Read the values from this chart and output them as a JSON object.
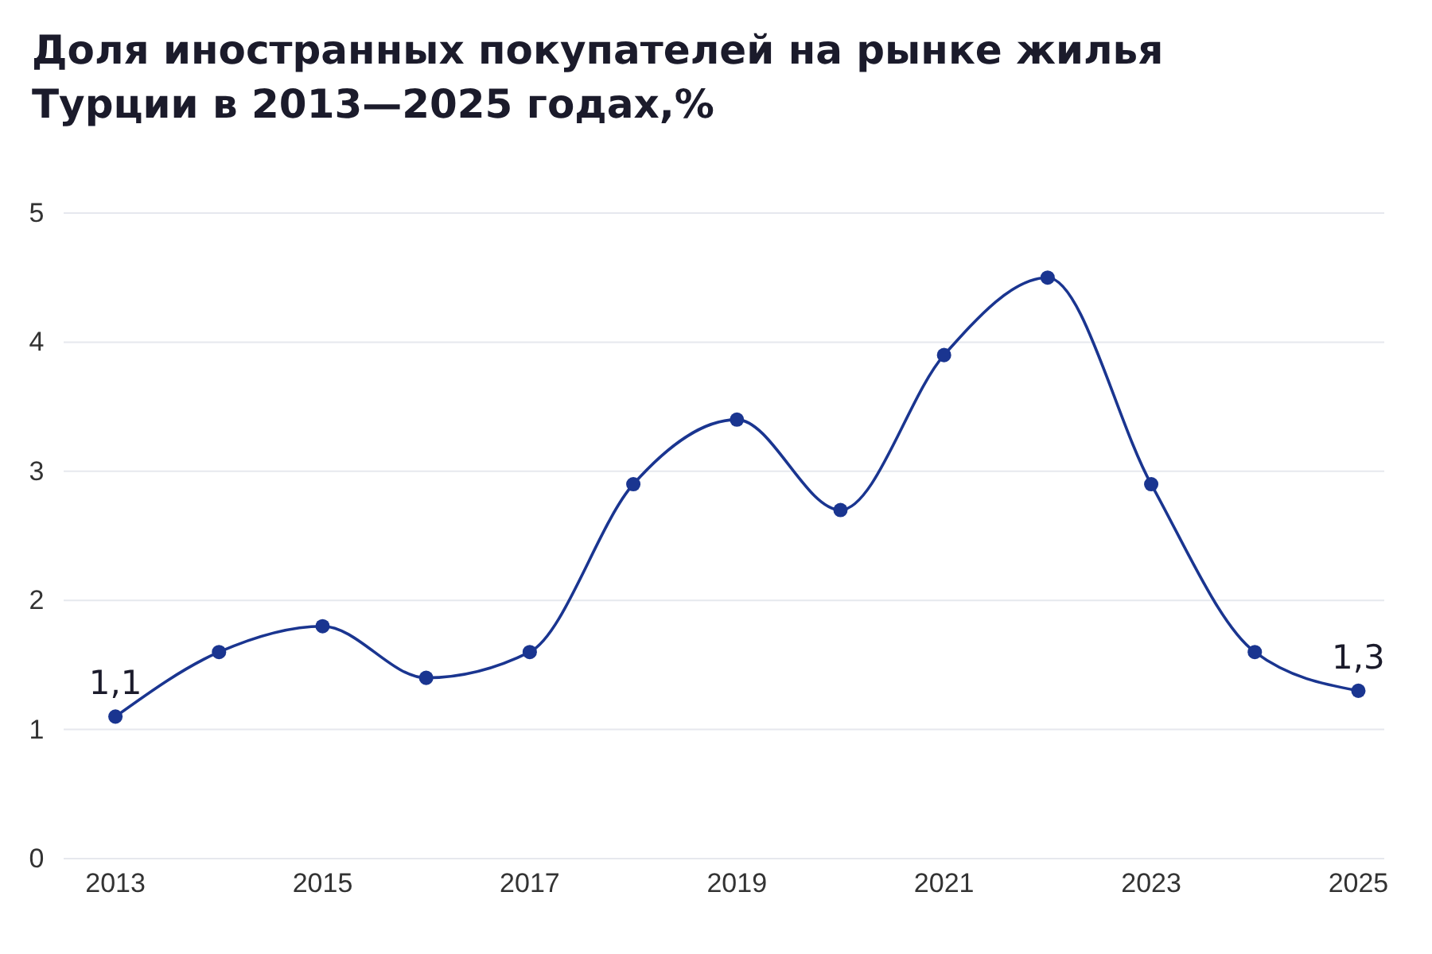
{
  "chart_data": {
    "type": "line",
    "title": "Доля иностранных покупателей на рынке жилья\nТурции в 2013—2025 годах,%",
    "x": [
      2013,
      2014,
      2015,
      2016,
      2017,
      2018,
      2019,
      2020,
      2021,
      2022,
      2023,
      2024,
      2025
    ],
    "series": [
      {
        "color": "#1a3590",
        "values": [
          1.1,
          1.6,
          1.8,
          1.4,
          1.6,
          2.9,
          3.4,
          2.7,
          3.9,
          4.5,
          2.9,
          1.6,
          1.3
        ],
        "value_labels": [
          "1,1",
          null,
          null,
          null,
          null,
          null,
          null,
          null,
          null,
          null,
          null,
          null,
          "1,3"
        ]
      }
    ],
    "xlim": [
      2012.5,
      2025.25
    ],
    "xticks": [
      2013,
      2015,
      2017,
      2019,
      2021,
      2023,
      2025
    ],
    "ylim": [
      0,
      5
    ],
    "yticks": [
      0,
      1,
      2,
      3,
      4,
      5
    ],
    "grid": "y",
    "marker": "circle",
    "line_style": "solid"
  }
}
